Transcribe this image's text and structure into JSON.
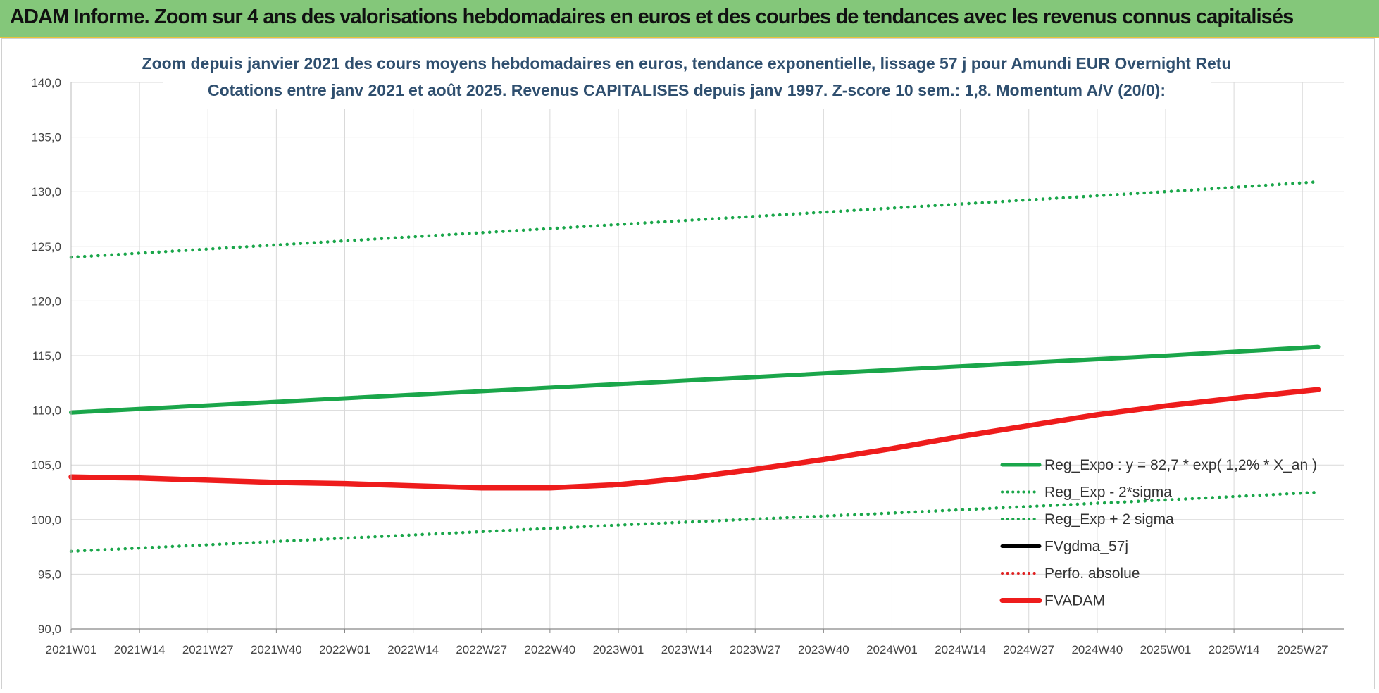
{
  "banner": {
    "text": "ADAM Informe. Zoom sur 4 ans des valorisations hebdomadaires en euros et des courbes de tendances avec les revenus connus capitalisés"
  },
  "colors": {
    "banner_bg": "#84c77a",
    "reg_expo": "#1aa64a",
    "band": "#1aa64a",
    "fvgdma": "#000000",
    "perfo": "#e02020",
    "fvadam": "#ee1c1c",
    "title": "#2f4f6f"
  },
  "chart_data": {
    "type": "line",
    "title_lines": [
      "Zoom depuis janvier 2021 des cours moyens hebdomadaires en euros, tendance exponentielle, lissage 57 j pour Amundi EUR Overnight Retu",
      "Cotations entre janv 2021 et août 2025. Revenus CAPITALISES depuis janv 1997. Z-score 10 sem.: 1,8. Momentum A/V (20/0):"
    ],
    "ylim": [
      90,
      140
    ],
    "y_ticks": [
      "90,0",
      "95,0",
      "100,0",
      "105,0",
      "110,0",
      "115,0",
      "120,0",
      "125,0",
      "130,0",
      "135,0",
      "140,0"
    ],
    "x_tick_labels": [
      "2021W01",
      "2021W14",
      "2021W27",
      "2021W40",
      "2022W01",
      "2022W14",
      "2022W27",
      "2022W40",
      "2023W01",
      "2023W14",
      "2023W27",
      "2023W40",
      "2024W01",
      "2024W14",
      "2024W27",
      "2024W40",
      "2025W01",
      "2025W14",
      "2025W27"
    ],
    "grid": true,
    "legend_position": "bottom-right",
    "series": [
      {
        "name": "Reg_Expo : y = 82,7 * exp( 1,2% *  X_an )",
        "style": "solid",
        "color": "#1aa64a",
        "x": [
          "2021W01",
          "2022W01",
          "2023W01",
          "2024W01",
          "2025W01",
          "2025W30"
        ],
        "y": [
          109.8,
          111.1,
          112.4,
          113.7,
          115.0,
          115.8
        ]
      },
      {
        "name": "Reg_Exp - 2*sigma",
        "style": "dotted",
        "color": "#1aa64a",
        "x": [
          "2021W01",
          "2022W01",
          "2023W01",
          "2024W01",
          "2025W01",
          "2025W30"
        ],
        "y": [
          97.1,
          98.3,
          99.5,
          100.6,
          101.8,
          102.5
        ]
      },
      {
        "name": "Reg_Exp + 2 sigma",
        "style": "dotted",
        "color": "#1aa64a",
        "x": [
          "2021W01",
          "2022W01",
          "2023W01",
          "2024W01",
          "2025W01",
          "2025W30"
        ],
        "y": [
          124.0,
          125.5,
          127.0,
          128.5,
          130.0,
          130.9
        ]
      },
      {
        "name": "FVgdma_57j",
        "style": "solid",
        "color": "#000000",
        "x": [
          "2022W40",
          "2022W46",
          "2022W52"
        ],
        "y": [
          102.9,
          103.0,
          103.1
        ]
      },
      {
        "name": "Perfo. absolue",
        "style": "dotted",
        "color": "#e02020",
        "x": [],
        "y": []
      },
      {
        "name": "FVADAM",
        "style": "solid",
        "color": "#ee1c1c",
        "x": [
          "2021W01",
          "2021W14",
          "2021W27",
          "2021W40",
          "2022W01",
          "2022W14",
          "2022W27",
          "2022W40",
          "2023W01",
          "2023W14",
          "2023W27",
          "2023W40",
          "2024W01",
          "2024W14",
          "2024W27",
          "2024W40",
          "2025W01",
          "2025W14",
          "2025W30"
        ],
        "y": [
          103.9,
          103.8,
          103.6,
          103.4,
          103.3,
          103.1,
          102.9,
          102.9,
          103.2,
          103.8,
          104.6,
          105.5,
          106.5,
          107.6,
          108.6,
          109.6,
          110.4,
          111.1,
          111.9
        ]
      }
    ]
  }
}
